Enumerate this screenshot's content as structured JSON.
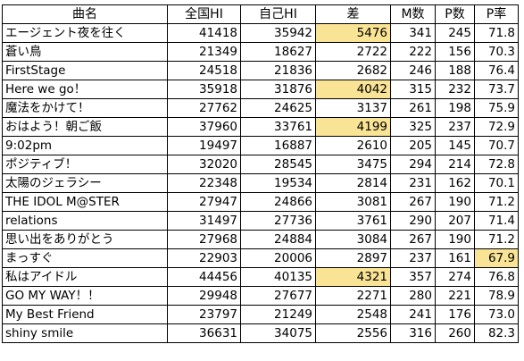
{
  "table": {
    "headers": [
      "曲名",
      "全国HI",
      "自己HI",
      "差",
      "M数",
      "P数",
      "P率"
    ],
    "rows": [
      {
        "song": "エージェント夜を往く",
        "national_hi": "41418",
        "self_hi": "35942",
        "diff": "5476",
        "m_count": "341",
        "p_count": "245",
        "p_rate": "71.8",
        "highlight": "diff"
      },
      {
        "song": "蒼い鳥",
        "national_hi": "21349",
        "self_hi": "18627",
        "diff": "2722",
        "m_count": "222",
        "p_count": "156",
        "p_rate": "70.3",
        "highlight": ""
      },
      {
        "song": "FirstStage",
        "national_hi": "24518",
        "self_hi": "21836",
        "diff": "2682",
        "m_count": "246",
        "p_count": "188",
        "p_rate": "76.4",
        "highlight": ""
      },
      {
        "song": "Here we go！",
        "national_hi": "35918",
        "self_hi": "31876",
        "diff": "4042",
        "m_count": "315",
        "p_count": "232",
        "p_rate": "73.7",
        "highlight": "diff"
      },
      {
        "song": "魔法をかけて！",
        "national_hi": "27762",
        "self_hi": "24625",
        "diff": "3137",
        "m_count": "261",
        "p_count": "198",
        "p_rate": "75.9",
        "highlight": ""
      },
      {
        "song": "おはよう！朝ご飯",
        "national_hi": "37960",
        "self_hi": "33761",
        "diff": "4199",
        "m_count": "325",
        "p_count": "237",
        "p_rate": "72.9",
        "highlight": "diff"
      },
      {
        "song": "9:02pm",
        "national_hi": "19497",
        "self_hi": "16887",
        "diff": "2610",
        "m_count": "205",
        "p_count": "145",
        "p_rate": "70.7",
        "highlight": ""
      },
      {
        "song": "ポジティブ！",
        "national_hi": "32020",
        "self_hi": "28545",
        "diff": "3475",
        "m_count": "294",
        "p_count": "214",
        "p_rate": "72.8",
        "highlight": ""
      },
      {
        "song": "太陽のジェラシー",
        "national_hi": "22348",
        "self_hi": "19534",
        "diff": "2814",
        "m_count": "231",
        "p_count": "162",
        "p_rate": "70.1",
        "highlight": ""
      },
      {
        "song": "THE IDOL M@STER",
        "national_hi": "27947",
        "self_hi": "24866",
        "diff": "3081",
        "m_count": "267",
        "p_count": "190",
        "p_rate": "71.2",
        "highlight": ""
      },
      {
        "song": "relations",
        "national_hi": "31497",
        "self_hi": "27736",
        "diff": "3761",
        "m_count": "290",
        "p_count": "207",
        "p_rate": "71.4",
        "highlight": ""
      },
      {
        "song": "思い出をありがとう",
        "national_hi": "27968",
        "self_hi": "24884",
        "diff": "3084",
        "m_count": "267",
        "p_count": "190",
        "p_rate": "71.2",
        "highlight": ""
      },
      {
        "song": "まっすぐ",
        "national_hi": "22903",
        "self_hi": "20006",
        "diff": "2897",
        "m_count": "237",
        "p_count": "161",
        "p_rate": "67.9",
        "highlight": "p_rate"
      },
      {
        "song": "私はアイドル",
        "national_hi": "44456",
        "self_hi": "40135",
        "diff": "4321",
        "m_count": "357",
        "p_count": "274",
        "p_rate": "76.8",
        "highlight": "diff"
      },
      {
        "song": "GO MY WAY！！",
        "national_hi": "29948",
        "self_hi": "27677",
        "diff": "2271",
        "m_count": "280",
        "p_count": "221",
        "p_rate": "78.9"
      },
      {
        "song": "My Best Friend",
        "national_hi": "23797",
        "self_hi": "21249",
        "diff": "2548",
        "m_count": "241",
        "p_count": "176",
        "p_rate": "73.0",
        "highlight": ""
      },
      {
        "song": "shiny smile",
        "national_hi": "36631",
        "self_hi": "34075",
        "diff": "2556",
        "m_count": "316",
        "p_count": "260",
        "p_rate": "82.3",
        "highlight": ""
      }
    ],
    "highlight_color": "#f9e394"
  }
}
